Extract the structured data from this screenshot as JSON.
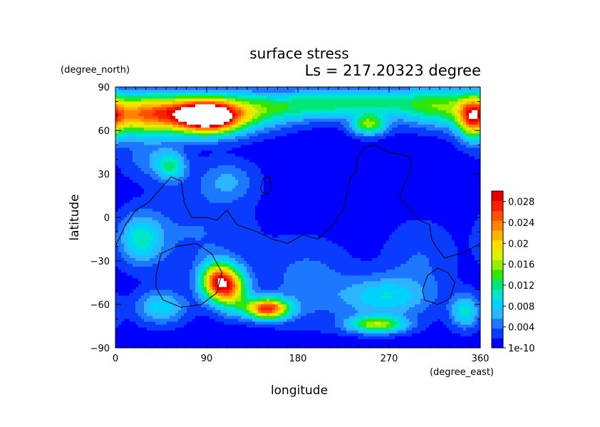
{
  "chart_data": {
    "type": "heatmap",
    "title": "surface stress",
    "subtitle": "Ls = 217.20323 degree",
    "xlabel": "longitude",
    "ylabel": "latitude",
    "x_units": "(degree_east)",
    "y_units": "(degree_north)",
    "xlim": [
      0,
      360
    ],
    "ylim": [
      -90,
      90
    ],
    "x_ticks": [
      0,
      90,
      180,
      270,
      360
    ],
    "y_ticks": [
      -90,
      -60,
      -30,
      0,
      30,
      60,
      90
    ],
    "colorbar": {
      "range": [
        0,
        0.03
      ],
      "tick_values": [
        0,
        0.004,
        0.008,
        0.012,
        0.016,
        0.02,
        0.024,
        0.028
      ],
      "tick_labels": [
        "1e-10",
        "0.004",
        "0.008",
        "0.012",
        "0.016",
        "0.02",
        "0.024",
        "0.028"
      ],
      "colors": [
        "#0000ff",
        "#0a3cff",
        "#1e78ff",
        "#2cb4ff",
        "#00d2ff",
        "#00e6c8",
        "#00e678",
        "#32e600",
        "#96f000",
        "#dcf000",
        "#ffdc00",
        "#ffb400",
        "#ff8200",
        "#ff5000",
        "#ff1e00",
        "#e60000"
      ]
    },
    "background_value": 0.0008,
    "features": [
      {
        "lon": 60,
        "lat": 72,
        "rx": 35,
        "ry": 9,
        "value": 0.018
      },
      {
        "lon": 92,
        "lat": 69,
        "rx": 22,
        "ry": 8,
        "value": 0.026
      },
      {
        "lon": 130,
        "lat": 73,
        "rx": 30,
        "ry": 9,
        "value": 0.01
      },
      {
        "lon": 20,
        "lat": 70,
        "rx": 25,
        "ry": 10,
        "value": 0.012
      },
      {
        "lon": 185,
        "lat": 77,
        "rx": 35,
        "ry": 7,
        "value": 0.008
      },
      {
        "lon": 250,
        "lat": 64,
        "rx": 12,
        "ry": 5,
        "value": 0.014
      },
      {
        "lon": 248,
        "lat": 80,
        "rx": 40,
        "ry": 7,
        "value": 0.009
      },
      {
        "lon": 320,
        "lat": 76,
        "rx": 30,
        "ry": 9,
        "value": 0.012
      },
      {
        "lon": 352,
        "lat": 68,
        "rx": 10,
        "ry": 10,
        "value": 0.016
      },
      {
        "lon": 55,
        "lat": 35,
        "rx": 10,
        "ry": 7,
        "value": 0.009
      },
      {
        "lon": 35,
        "lat": 40,
        "rx": 20,
        "ry": 10,
        "value": 0.004
      },
      {
        "lon": 110,
        "lat": 25,
        "rx": 20,
        "ry": 10,
        "value": 0.005
      },
      {
        "lon": 25,
        "lat": -15,
        "rx": 15,
        "ry": 12,
        "value": 0.009
      },
      {
        "lon": 80,
        "lat": -10,
        "rx": 40,
        "ry": 20,
        "value": 0.003
      },
      {
        "lon": 100,
        "lat": -44,
        "rx": 12,
        "ry": 9,
        "value": 0.022
      },
      {
        "lon": 115,
        "lat": -50,
        "rx": 12,
        "ry": 10,
        "value": 0.016
      },
      {
        "lon": 150,
        "lat": -63,
        "rx": 15,
        "ry": 5,
        "value": 0.026
      },
      {
        "lon": 45,
        "lat": -62,
        "rx": 18,
        "ry": 8,
        "value": 0.008
      },
      {
        "lon": 190,
        "lat": -45,
        "rx": 30,
        "ry": 20,
        "value": 0.004
      },
      {
        "lon": 265,
        "lat": -55,
        "rx": 30,
        "ry": 10,
        "value": 0.008
      },
      {
        "lon": 258,
        "lat": -74,
        "rx": 20,
        "ry": 4,
        "value": 0.015
      },
      {
        "lon": 345,
        "lat": -65,
        "rx": 10,
        "ry": 8,
        "value": 0.009
      },
      {
        "lon": 300,
        "lat": -30,
        "rx": 25,
        "ry": 20,
        "value": 0.003
      }
    ],
    "outlines": [
      {
        "name": "continent-a",
        "points": [
          [
            0,
            -20
          ],
          [
            10,
            -5
          ],
          [
            20,
            5
          ],
          [
            32,
            10
          ],
          [
            45,
            20
          ],
          [
            55,
            28
          ],
          [
            65,
            25
          ],
          [
            68,
            10
          ],
          [
            75,
            0
          ],
          [
            90,
            0
          ],
          [
            100,
            -2
          ],
          [
            110,
            5
          ],
          [
            120,
            -5
          ],
          [
            140,
            -10
          ],
          [
            155,
            -15
          ],
          [
            170,
            -18
          ],
          [
            185,
            -12
          ],
          [
            200,
            -15
          ],
          [
            215,
            -5
          ],
          [
            225,
            5
          ],
          [
            228,
            15
          ],
          [
            232,
            28
          ],
          [
            238,
            32
          ],
          [
            238,
            40
          ],
          [
            245,
            48
          ],
          [
            255,
            50
          ],
          [
            270,
            45
          ],
          [
            290,
            42
          ],
          [
            292,
            35
          ],
          [
            285,
            22
          ],
          [
            280,
            15
          ],
          [
            285,
            10
          ],
          [
            300,
            -2
          ],
          [
            310,
            -5
          ],
          [
            312,
            -15
          ],
          [
            318,
            -22
          ],
          [
            325,
            -28
          ],
          [
            340,
            -25
          ],
          [
            355,
            -20
          ],
          [
            360,
            -18
          ]
        ]
      },
      {
        "name": "island-north",
        "points": [
          [
            143,
            20
          ],
          [
            146,
            27
          ],
          [
            152,
            28
          ],
          [
            154,
            20
          ],
          [
            150,
            16
          ],
          [
            145,
            17
          ],
          [
            143,
            20
          ]
        ]
      },
      {
        "name": "crater-west",
        "points": [
          [
            40,
            -40
          ],
          [
            45,
            -25
          ],
          [
            60,
            -20
          ],
          [
            80,
            -18
          ],
          [
            95,
            -25
          ],
          [
            105,
            -38
          ],
          [
            100,
            -52
          ],
          [
            85,
            -60
          ],
          [
            65,
            -62
          ],
          [
            47,
            -57
          ],
          [
            40,
            -48
          ],
          [
            40,
            -40
          ]
        ]
      },
      {
        "name": "crater-east",
        "points": [
          [
            303,
            -50
          ],
          [
            308,
            -40
          ],
          [
            318,
            -35
          ],
          [
            328,
            -38
          ],
          [
            335,
            -45
          ],
          [
            330,
            -56
          ],
          [
            318,
            -60
          ],
          [
            305,
            -57
          ],
          [
            303,
            -50
          ]
        ]
      }
    ]
  }
}
